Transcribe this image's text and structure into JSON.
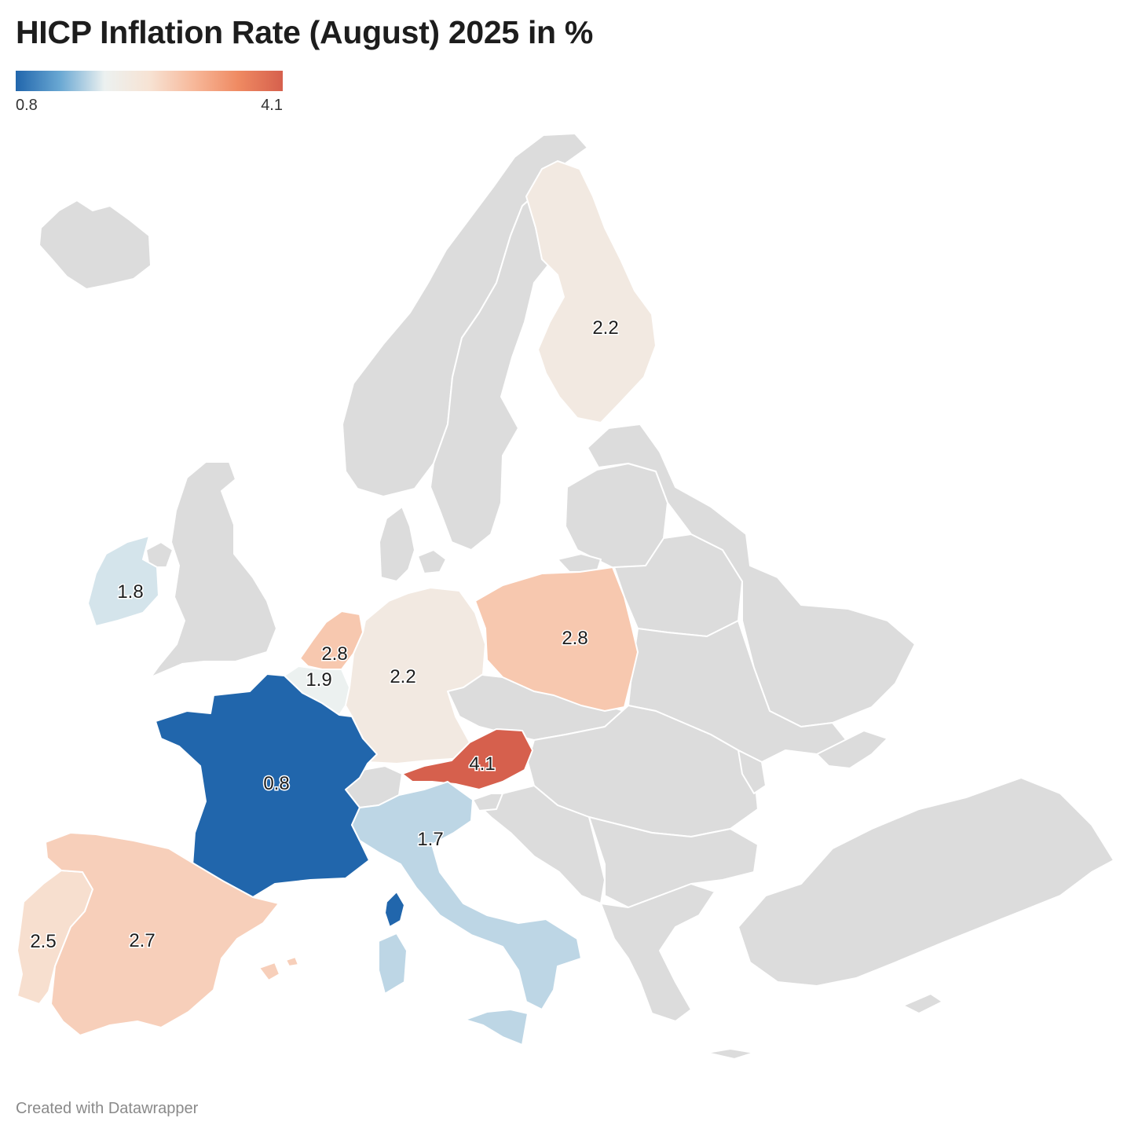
{
  "title": "HICP Inflation Rate (August) 2025 in %",
  "legend": {
    "min_label": "0.8",
    "max_label": "4.1",
    "min_value": 0.8,
    "max_value": 4.1,
    "colors": [
      "#2166ac",
      "#6aa8d3",
      "#ecf1f0",
      "#f7e3d4",
      "#f7b89a",
      "#ef8a62",
      "#d6604d"
    ]
  },
  "no_data_color": "#dcdcdc",
  "countries": [
    {
      "id": "fi",
      "name": "Finland",
      "value": 2.2,
      "label": "2.2"
    },
    {
      "id": "ie",
      "name": "Ireland",
      "value": 1.8,
      "label": "1.8"
    },
    {
      "id": "nl",
      "name": "Netherlands",
      "value": 2.8,
      "label": "2.8"
    },
    {
      "id": "be",
      "name": "Belgium",
      "value": 1.9,
      "label": "1.9"
    },
    {
      "id": "de",
      "name": "Germany",
      "value": 2.2,
      "label": "2.2"
    },
    {
      "id": "pl",
      "name": "Poland",
      "value": 2.8,
      "label": "2.8"
    },
    {
      "id": "fr",
      "name": "France",
      "value": 0.8,
      "label": "0.8"
    },
    {
      "id": "at",
      "name": "Austria",
      "value": 4.1,
      "label": "4.1"
    },
    {
      "id": "it",
      "name": "Italy",
      "value": 1.7,
      "label": "1.7"
    },
    {
      "id": "pt",
      "name": "Portugal",
      "value": 2.5,
      "label": "2.5"
    },
    {
      "id": "es",
      "name": "Spain",
      "value": 2.7,
      "label": "2.7"
    }
  ],
  "footer": "Created with Datawrapper"
}
